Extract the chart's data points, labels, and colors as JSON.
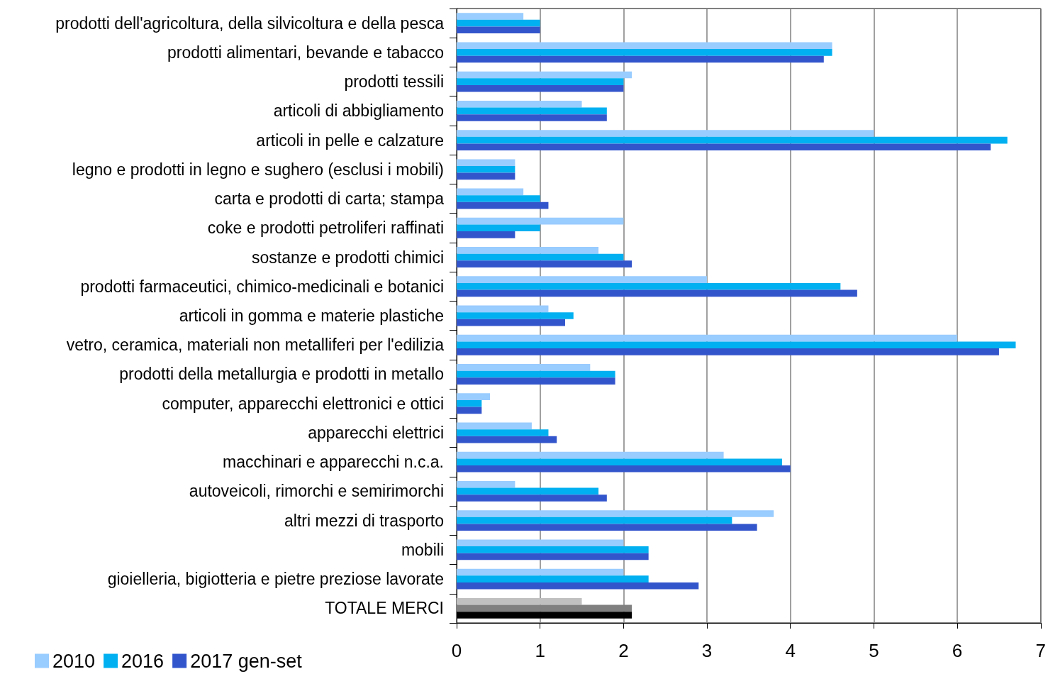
{
  "chart_data": {
    "type": "bar",
    "orientation": "horizontal",
    "categories": [
      "prodotti dell'agricoltura, della silvicoltura e della pesca",
      "prodotti alimentari, bevande e tabacco",
      "prodotti tessili",
      "articoli di abbigliamento",
      "articoli in pelle e calzature",
      "legno e prodotti in legno e sughero (esclusi i mobili)",
      "carta e prodotti di carta; stampa",
      "coke e prodotti petroliferi raffinati",
      "sostanze e prodotti chimici",
      "prodotti farmaceutici, chimico-medicinali e botanici",
      "articoli in gomma e materie plastiche",
      "vetro, ceramica, materiali non metalliferi per l'edilizia",
      "prodotti della metallurgia e prodotti in metallo",
      "computer, apparecchi elettronici e ottici",
      "apparecchi elettrici",
      "macchinari e apparecchi n.c.a.",
      "autoveicoli, rimorchi e semirimorchi",
      "altri mezzi di trasporto",
      "mobili",
      "gioielleria, bigiotteria e pietre preziose lavorate",
      "TOTALE MERCI"
    ],
    "series": [
      {
        "name": "2010",
        "color": "#99ccff",
        "colors": [
          "#99ccff",
          "#99ccff",
          "#99ccff",
          "#99ccff",
          "#99ccff",
          "#99ccff",
          "#99ccff",
          "#99ccff",
          "#99ccff",
          "#99ccff",
          "#99ccff",
          "#99ccff",
          "#99ccff",
          "#99ccff",
          "#99ccff",
          "#99ccff",
          "#99ccff",
          "#99ccff",
          "#99ccff",
          "#99ccff",
          "#c0c0c0"
        ],
        "values": [
          0.8,
          4.5,
          2.1,
          1.5,
          5.0,
          0.7,
          0.8,
          2.0,
          1.7,
          3.0,
          1.1,
          6.0,
          1.6,
          0.4,
          0.9,
          3.2,
          0.7,
          3.8,
          2.0,
          2.0,
          1.5
        ]
      },
      {
        "name": "2016",
        "color": "#00b0f0",
        "colors": [
          "#00b0f0",
          "#00b0f0",
          "#00b0f0",
          "#00b0f0",
          "#00b0f0",
          "#00b0f0",
          "#00b0f0",
          "#00b0f0",
          "#00b0f0",
          "#00b0f0",
          "#00b0f0",
          "#00b0f0",
          "#00b0f0",
          "#00b0f0",
          "#00b0f0",
          "#00b0f0",
          "#00b0f0",
          "#00b0f0",
          "#00b0f0",
          "#00b0f0",
          "#808080"
        ],
        "values": [
          1.0,
          4.5,
          2.0,
          1.8,
          6.6,
          0.7,
          1.0,
          1.0,
          2.0,
          4.6,
          1.4,
          6.7,
          1.9,
          0.3,
          1.1,
          3.9,
          1.7,
          3.3,
          2.3,
          2.3,
          2.1
        ]
      },
      {
        "name": "2017 gen-set",
        "color": "#3355cc",
        "colors": [
          "#3355cc",
          "#3355cc",
          "#3355cc",
          "#3355cc",
          "#3355cc",
          "#3355cc",
          "#3355cc",
          "#3355cc",
          "#3355cc",
          "#3355cc",
          "#3355cc",
          "#3355cc",
          "#3355cc",
          "#3355cc",
          "#3355cc",
          "#3355cc",
          "#3355cc",
          "#3355cc",
          "#3355cc",
          "#3355cc",
          "#000000"
        ],
        "values": [
          1.0,
          4.4,
          2.0,
          1.8,
          6.4,
          0.7,
          1.1,
          0.7,
          2.1,
          4.8,
          1.3,
          6.5,
          1.9,
          0.3,
          1.2,
          4.0,
          1.8,
          3.6,
          2.3,
          2.9,
          2.1
        ]
      }
    ],
    "xlim": [
      0,
      7
    ],
    "xticks": [
      0,
      1,
      2,
      3,
      4,
      5,
      6,
      7
    ],
    "grid": "x",
    "legend": "bottom left"
  }
}
